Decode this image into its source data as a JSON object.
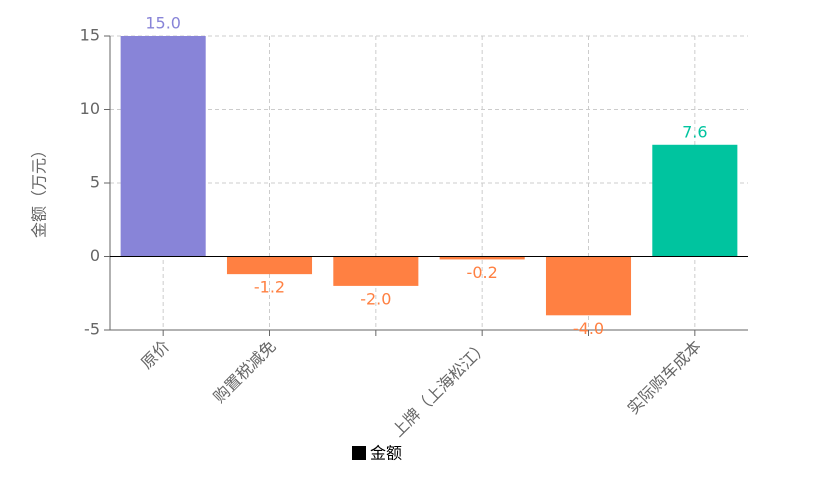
{
  "chart_data": {
    "type": "bar",
    "y_label": "金额（万元）",
    "categories": [
      "原价",
      "购置税减免",
      null,
      "上牌（上海松江）",
      null,
      "实际购车成本"
    ],
    "series": [
      {
        "name": "金额",
        "color": "#000000",
        "values": [
          15.0,
          -1.2,
          -2.0,
          -0.2,
          -4.0,
          7.6
        ],
        "value_labels": [
          "15.0",
          "-1.2",
          "-2.0",
          "-0.2",
          "-4.0",
          "7.6"
        ],
        "bar_colors": [
          "#8884d8",
          "#ff8042",
          "#ff8042",
          "#ff8042",
          "#ff8042",
          "#00c49f"
        ]
      }
    ],
    "ylim": [
      -5,
      15
    ],
    "yticks": [
      -5,
      0,
      5,
      10,
      15
    ],
    "grid": true
  }
}
